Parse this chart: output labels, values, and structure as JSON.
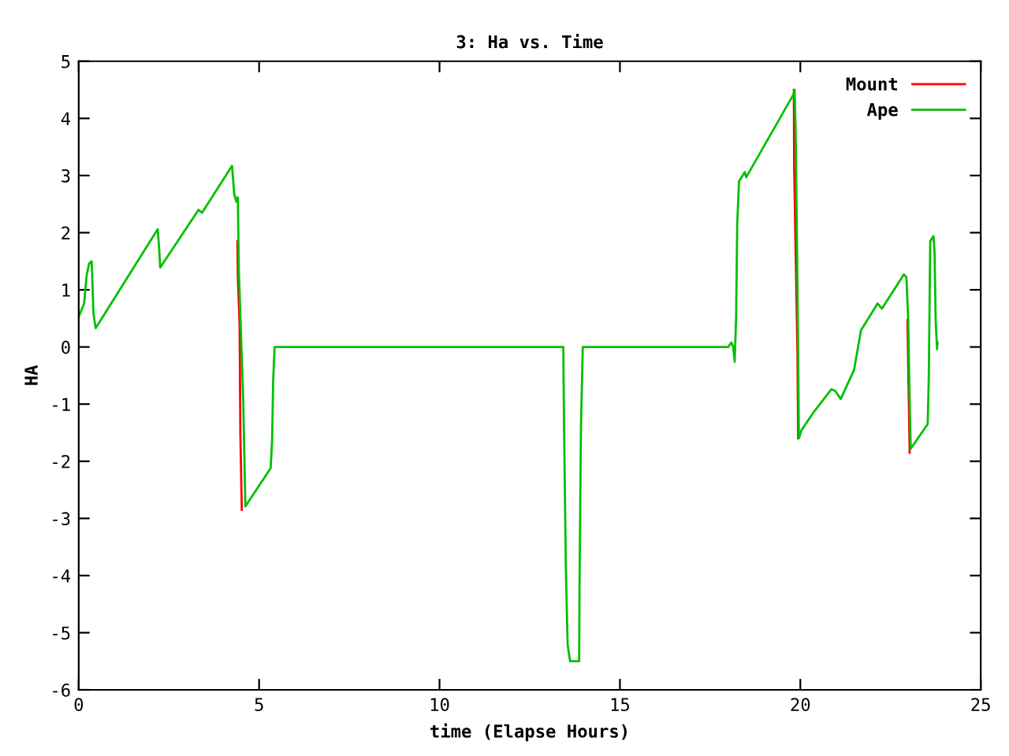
{
  "chart_data": {
    "type": "line",
    "title": "3: Ha vs. Time",
    "xlabel": "time (Elapse Hours)",
    "ylabel": "HA",
    "xlim": [
      0,
      25
    ],
    "ylim": [
      -6,
      5
    ],
    "xticks": [
      0,
      5,
      10,
      15,
      20,
      25
    ],
    "yticks": [
      -6,
      -5,
      -4,
      -3,
      -2,
      -1,
      0,
      1,
      2,
      3,
      4,
      5
    ],
    "grid": false,
    "legend": "top right",
    "marker": "none",
    "line_style": "solid",
    "series": [
      {
        "name": "Mount",
        "color": "#ff0000",
        "x": [
          4.4,
          4.41,
          4.46,
          4.48,
          4.52,
          null,
          19.82,
          19.83,
          19.92,
          19.94,
          null,
          22.97,
          22.99,
          23.03
        ],
        "values": [
          1.85,
          1.25,
          0.38,
          -1.5,
          -2.85,
          null,
          4.5,
          3.1,
          -0.1,
          -1.6,
          null,
          0.47,
          -0.33,
          -1.85
        ]
      },
      {
        "name": "Ape",
        "color": "#00c000",
        "x": [
          0,
          0.15,
          0.22,
          0.29,
          0.36,
          0.41,
          0.47,
          2.19,
          2.23,
          2.26,
          3.32,
          3.42,
          4.25,
          4.31,
          4.37,
          4.41,
          4.44,
          4.49,
          4.56,
          4.6,
          4.62,
          5.32,
          5.36,
          5.39,
          5.43,
          13.43,
          13.45,
          13.5,
          13.55,
          13.62,
          13.87,
          13.88,
          13.92,
          13.97,
          18.0,
          18.09,
          18.14,
          18.18,
          18.22,
          18.25,
          18.3,
          18.46,
          18.5,
          19.81,
          19.84,
          19.87,
          19.9,
          19.94,
          19.96,
          20.03,
          20.37,
          20.86,
          20.97,
          21.12,
          21.49,
          21.68,
          22.14,
          22.26,
          22.87,
          22.94,
          22.99,
          23.02,
          23.06,
          23.53,
          23.56,
          23.6,
          23.69,
          23.72,
          23.75,
          23.79,
          23.8
        ],
        "values": [
          0.53,
          0.76,
          1.25,
          1.46,
          1.5,
          0.58,
          0.33,
          2.06,
          1.71,
          1.39,
          2.4,
          2.35,
          3.17,
          2.68,
          2.54,
          2.62,
          1.3,
          0.38,
          -0.95,
          -2.19,
          -2.79,
          -2.12,
          -1.64,
          -0.59,
          0,
          0,
          -1.28,
          -3.83,
          -5.21,
          -5.5,
          -5.5,
          -4.17,
          -1.41,
          0,
          0,
          0.08,
          0,
          -0.26,
          0.52,
          2.13,
          2.9,
          3.06,
          2.97,
          4.42,
          4.5,
          3.78,
          2.22,
          -0.08,
          -1.6,
          -1.46,
          -1.14,
          -0.74,
          -0.77,
          -0.91,
          -0.4,
          0.29,
          0.76,
          0.67,
          1.27,
          1.22,
          0.47,
          -0.63,
          -1.78,
          -1.35,
          -0.54,
          1.85,
          1.94,
          1.66,
          0.47,
          -0.04,
          0.08
        ]
      }
    ]
  }
}
